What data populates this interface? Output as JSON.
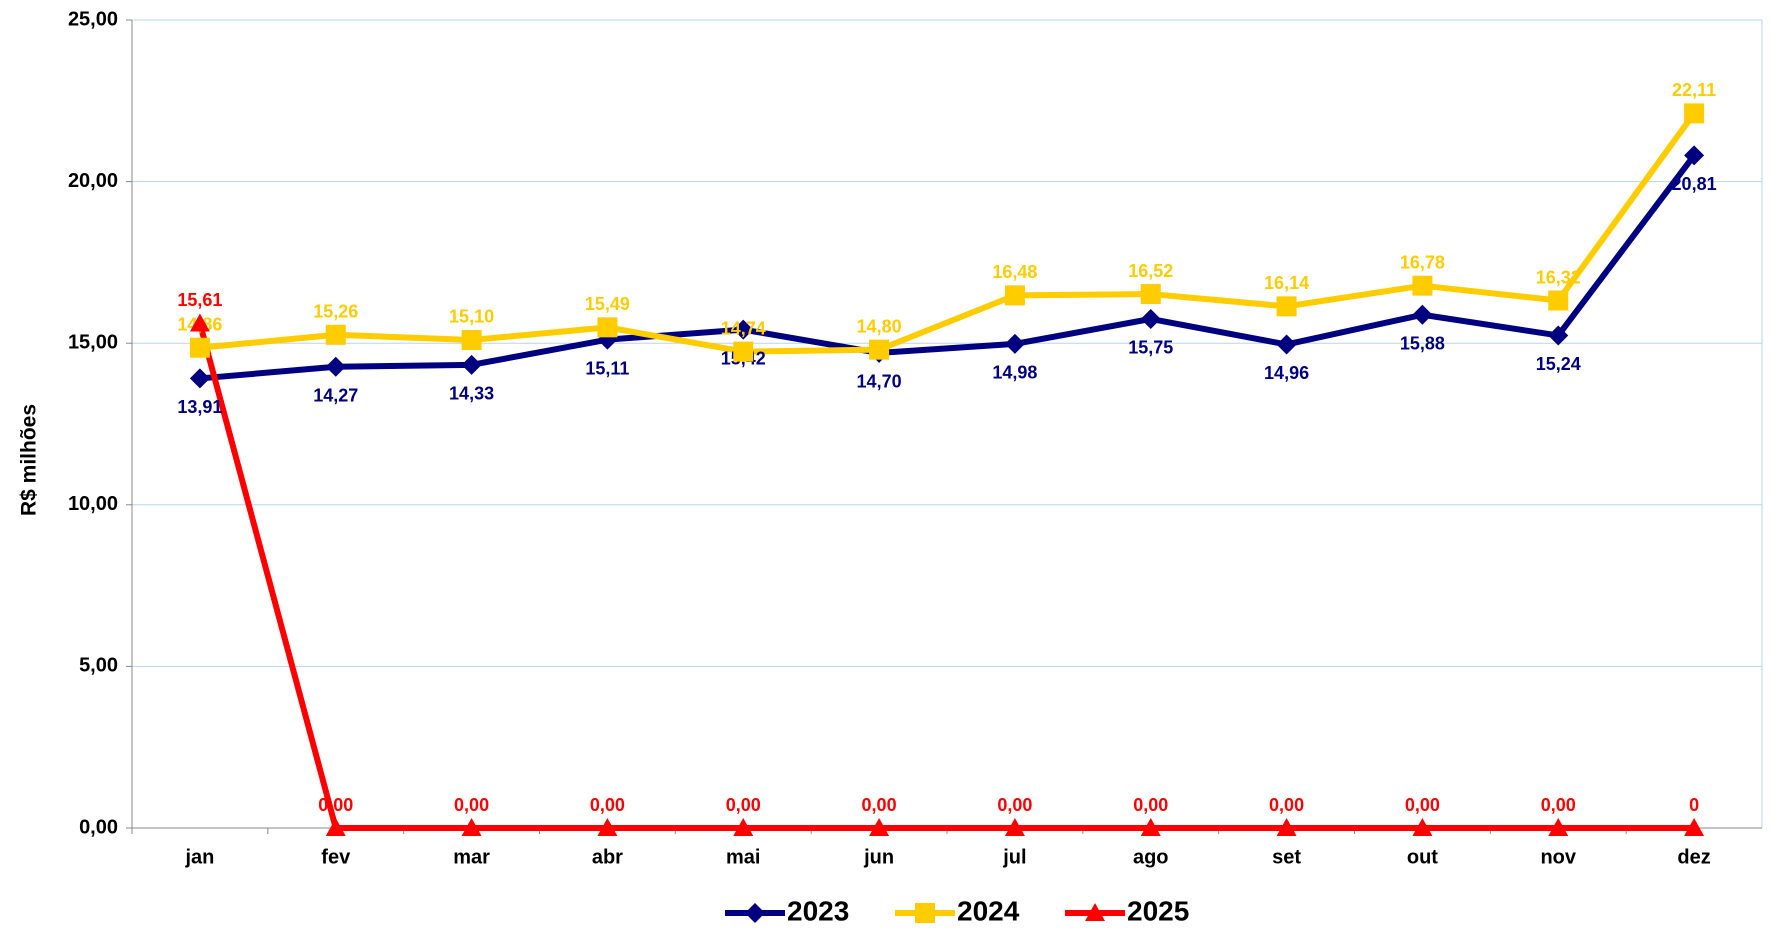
{
  "chart_data": {
    "type": "line",
    "y_label": "R$ milhões",
    "categories": [
      "jan",
      "fev",
      "mar",
      "abr",
      "mai",
      "jun",
      "jul",
      "ago",
      "set",
      "out",
      "nov",
      "dez"
    ],
    "series": [
      {
        "name": "2023",
        "color": "#000080",
        "marker": "diamond",
        "values": [
          13.91,
          14.27,
          14.33,
          15.11,
          15.42,
          14.7,
          14.98,
          15.75,
          14.96,
          15.88,
          15.24,
          20.81
        ],
        "value_labels": [
          "13,91",
          "14,27",
          "14,33",
          "15,11",
          "15,42",
          "14,70",
          "14,98",
          "15,75",
          "14,96",
          "15,88",
          "15,24",
          "20,81"
        ]
      },
      {
        "name": "2024",
        "color": "#FFCC00",
        "marker": "square",
        "values": [
          14.86,
          15.26,
          15.1,
          15.49,
          14.74,
          14.8,
          16.48,
          16.52,
          16.14,
          16.78,
          16.32,
          22.11
        ],
        "value_labels": [
          "14,86",
          "15,26",
          "15,10",
          "15,49",
          "14,74",
          "14,80",
          "16,48",
          "16,52",
          "16,14",
          "16,78",
          "16,32",
          "22,11"
        ]
      },
      {
        "name": "2025",
        "color": "#FF0000",
        "marker": "triangle",
        "values": [
          15.61,
          0,
          0,
          0,
          0,
          0,
          0,
          0,
          0,
          0,
          0,
          0
        ],
        "value_labels": [
          "15,61",
          "0,00",
          "0,00",
          "0,00",
          "0,00",
          "0,00",
          "0,00",
          "0,00",
          "0,00",
          "0,00",
          "0,00",
          "0"
        ]
      }
    ],
    "ylim": [
      0,
      25
    ],
    "yticks": [
      {
        "value": 0,
        "label": "0,00"
      },
      {
        "value": 5,
        "label": "5,00"
      },
      {
        "value": 10,
        "label": "10,00"
      },
      {
        "value": 15,
        "label": "15,00"
      },
      {
        "value": 20,
        "label": "20,00"
      },
      {
        "value": 25,
        "label": "25,00"
      }
    ],
    "grid": true,
    "legend": "bottom"
  }
}
